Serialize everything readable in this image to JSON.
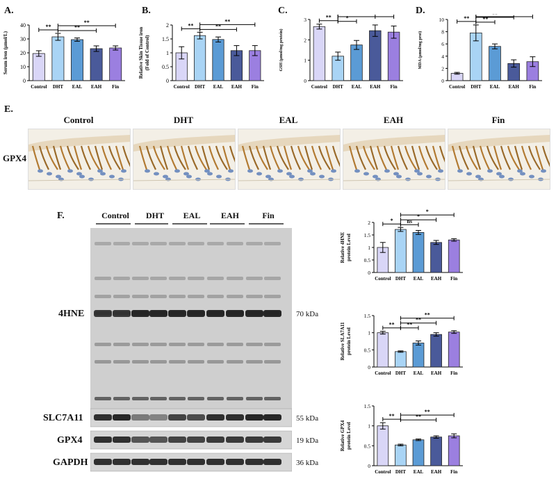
{
  "panels": {
    "A": "A.",
    "B": "B.",
    "C": "C.",
    "D": "D.",
    "E": "E.",
    "F": "F."
  },
  "groups": [
    "Control",
    "DHT",
    "EAL",
    "EAH",
    "Fin"
  ],
  "colors": [
    "#d9d6f7",
    "#a9d4f5",
    "#5b9bd5",
    "#4a5a9a",
    "#9b7fe0"
  ],
  "significance": {
    "double": "**",
    "single": "*",
    "ns": "ns"
  },
  "chart_data": [
    {
      "type": "bar",
      "id": "A",
      "ylabel": "Serum iron (μmol/L)",
      "ylim": [
        0,
        40
      ],
      "yticks": [
        0,
        10,
        20,
        30,
        40
      ],
      "categories": [
        "Control",
        "DHT",
        "EAL",
        "EAH",
        "Fin"
      ],
      "values": [
        19.5,
        31.5,
        29.5,
        23.0,
        23.5
      ],
      "errors": [
        2.0,
        2.5,
        1.2,
        2.0,
        1.5
      ],
      "brackets": [
        {
          "from": 0,
          "to": 1,
          "label": "**"
        },
        {
          "from": 1,
          "to": 3,
          "label": "**"
        },
        {
          "from": 1,
          "to": 4,
          "label": "**"
        }
      ]
    },
    {
      "type": "bar",
      "id": "B",
      "ylabel": "Relative Skin Tissue iron (Fold of Control)",
      "ylim": [
        0,
        2.0
      ],
      "yticks": [
        0,
        0.5,
        1.0,
        1.5,
        2.0
      ],
      "categories": [
        "Control",
        "DHT",
        "EAL",
        "EAH",
        "Fin"
      ],
      "values": [
        1.0,
        1.62,
        1.48,
        1.08,
        1.08
      ],
      "errors": [
        0.22,
        0.12,
        0.09,
        0.18,
        0.18
      ],
      "brackets": [
        {
          "from": 0,
          "to": 1,
          "label": "**"
        },
        {
          "from": 1,
          "to": 3,
          "label": "**"
        },
        {
          "from": 1,
          "to": 4,
          "label": "**"
        }
      ]
    },
    {
      "type": "bar",
      "id": "C",
      "ylabel": "GSH (μmol/mg protein)",
      "ylim": [
        0,
        3
      ],
      "yticks": [
        0,
        1,
        2,
        3
      ],
      "categories": [
        "Control",
        "DHT",
        "EAL",
        "EAH",
        "Fin"
      ],
      "values": [
        2.65,
        1.2,
        1.75,
        2.45,
        2.38
      ],
      "errors": [
        0.12,
        0.2,
        0.22,
        0.28,
        0.3
      ],
      "brackets": [
        {
          "from": 0,
          "to": 1,
          "label": "**"
        },
        {
          "from": 1,
          "to": 2,
          "label": "*"
        },
        {
          "from": 1,
          "to": 3,
          "label": "**"
        },
        {
          "from": 1,
          "to": 4,
          "label": "**"
        }
      ]
    },
    {
      "type": "bar",
      "id": "D",
      "ylabel": "MDA (μmol/mg prot)",
      "ylim": [
        0,
        10
      ],
      "yticks": [
        0,
        2,
        4,
        6,
        8,
        10
      ],
      "categories": [
        "Control",
        "DHT",
        "EAL",
        "EAH",
        "Fin"
      ],
      "values": [
        1.2,
        7.8,
        5.6,
        2.8,
        3.1
      ],
      "errors": [
        0.15,
        1.3,
        0.4,
        0.6,
        0.8
      ],
      "brackets": [
        {
          "from": 0,
          "to": 1,
          "label": "**"
        },
        {
          "from": 1,
          "to": 2,
          "label": "**"
        },
        {
          "from": 1,
          "to": 3,
          "label": "**"
        },
        {
          "from": 1,
          "to": 4,
          "label": "**"
        }
      ]
    },
    {
      "type": "bar",
      "id": "F1",
      "ylabel": "Relative 4HNE protein Level",
      "ylim": [
        0,
        2.0
      ],
      "yticks": [
        0,
        0.5,
        1.0,
        1.5,
        2.0
      ],
      "categories": [
        "Control",
        "DHT",
        "EAL",
        "EAH",
        "Fin"
      ],
      "values": [
        1.0,
        1.72,
        1.6,
        1.2,
        1.3
      ],
      "errors": [
        0.2,
        0.08,
        0.08,
        0.08,
        0.05
      ],
      "brackets": [
        {
          "from": 0,
          "to": 1,
          "label": "*"
        },
        {
          "from": 1,
          "to": 2,
          "label": "ns"
        },
        {
          "from": 1,
          "to": 3,
          "label": "*"
        },
        {
          "from": 1,
          "to": 4,
          "label": "*"
        }
      ]
    },
    {
      "type": "bar",
      "id": "F2",
      "ylabel": "Relative SLA7A11 protein Level",
      "ylim": [
        0,
        1.5
      ],
      "yticks": [
        0,
        0.5,
        1.0,
        1.5
      ],
      "categories": [
        "Control",
        "DHT",
        "EAL",
        "EAH",
        "Fin"
      ],
      "values": [
        1.0,
        0.45,
        0.7,
        0.95,
        1.02
      ],
      "errors": [
        0.04,
        0.02,
        0.06,
        0.05,
        0.04
      ],
      "brackets": [
        {
          "from": 0,
          "to": 1,
          "label": "**"
        },
        {
          "from": 1,
          "to": 2,
          "label": "**"
        },
        {
          "from": 1,
          "to": 3,
          "label": "**"
        },
        {
          "from": 1,
          "to": 4,
          "label": "**"
        }
      ]
    },
    {
      "type": "bar",
      "id": "F3",
      "ylabel": "Relative GPX4 protein Level",
      "ylim": [
        0,
        1.5
      ],
      "yticks": [
        0,
        0.5,
        1.0,
        1.5
      ],
      "categories": [
        "Control",
        "DHT",
        "EAL",
        "EAH",
        "Fin"
      ],
      "values": [
        1.0,
        0.52,
        0.65,
        0.72,
        0.75
      ],
      "errors": [
        0.08,
        0.02,
        0.02,
        0.03,
        0.05
      ],
      "brackets": [
        {
          "from": 0,
          "to": 1,
          "label": "**"
        },
        {
          "from": 1,
          "to": 3,
          "label": "**"
        },
        {
          "from": 1,
          "to": 4,
          "label": "**"
        }
      ]
    }
  ],
  "ihc": {
    "row_label": "GPX4",
    "titles": [
      "Control",
      "DHT",
      "EAL",
      "EAH",
      "Fin"
    ]
  },
  "blot": {
    "lanes": [
      "Control",
      "DHT",
      "EAL",
      "EAH",
      "Fin"
    ],
    "rows": [
      {
        "name": "4HNE",
        "kda": "70 kDa"
      },
      {
        "name": "SLC7A11",
        "kda": "55 kDa"
      },
      {
        "name": "GPX4",
        "kda": "19 kDa"
      },
      {
        "name": "GAPDH",
        "kda": "36 kDa"
      }
    ]
  }
}
